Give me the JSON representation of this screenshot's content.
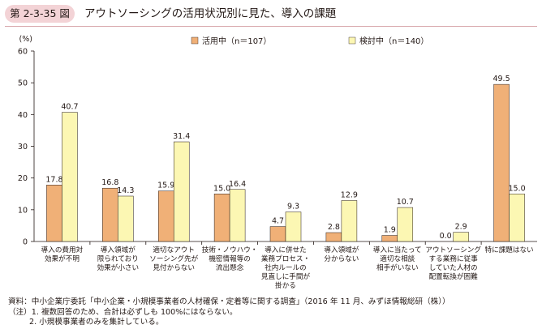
{
  "figure": {
    "number": "第 2-3-35 図",
    "title": "アウトソーシングの活用状況別に見た、導入の課題"
  },
  "chart_data": {
    "type": "bar",
    "yunit": "(%)",
    "ylim": [
      0,
      60
    ],
    "yticks": [
      0,
      10,
      20,
      30,
      40,
      50,
      60
    ],
    "grid": false,
    "legend_position": "top",
    "categories": [
      [
        "導入の費用対",
        "効果が不明"
      ],
      [
        "導入領域が",
        "限られており",
        "効果が小さい"
      ],
      [
        "適切なアウト",
        "ソーシング先が",
        "見付からない"
      ],
      [
        "技術・ノウハウ・",
        "機密情報等の",
        "流出懸念"
      ],
      [
        "導入に併せた",
        "業務プロセス・",
        "社内ルールの",
        "見直しに手間が",
        "掛かる"
      ],
      [
        "導入領域が",
        "分からない"
      ],
      [
        "導入に当たって",
        "適切な相談",
        "相手がいない"
      ],
      [
        "アウトソーシング",
        "する業務に従事",
        "していた人材の",
        "配置転換が困難"
      ],
      [
        "特に課題はない"
      ]
    ],
    "series": [
      {
        "name": "活用中（n＝107）",
        "color": "#f0b077",
        "values": [
          17.8,
          16.8,
          15.9,
          15.0,
          4.7,
          2.8,
          1.9,
          0.0,
          49.5
        ],
        "labels": [
          "17.8",
          "16.8",
          "15.9",
          "15.0",
          "4.7",
          "2.8",
          "1.9",
          "0.0",
          "49.5"
        ]
      },
      {
        "name": "検討中（n＝140）",
        "color": "#fcf7b3",
        "values": [
          40.7,
          14.3,
          31.4,
          16.4,
          9.3,
          12.9,
          10.7,
          2.9,
          15.0
        ],
        "labels": [
          "40.7",
          "14.3",
          "31.4",
          "16.4",
          "9.3",
          "12.9",
          "10.7",
          "2.9",
          "15.0"
        ]
      }
    ]
  },
  "notes": {
    "source": "資料：中小企業庁委託「中小企業・小規模事業者の人材確保・定着等に関する調査」（2016 年 11 月、みずほ情報総研（株））",
    "note1": "（注）1. 複数回答のため、合計は必ずしも 100%にはならない。",
    "note2": "2. 小規模事業者のみを集計している。"
  }
}
